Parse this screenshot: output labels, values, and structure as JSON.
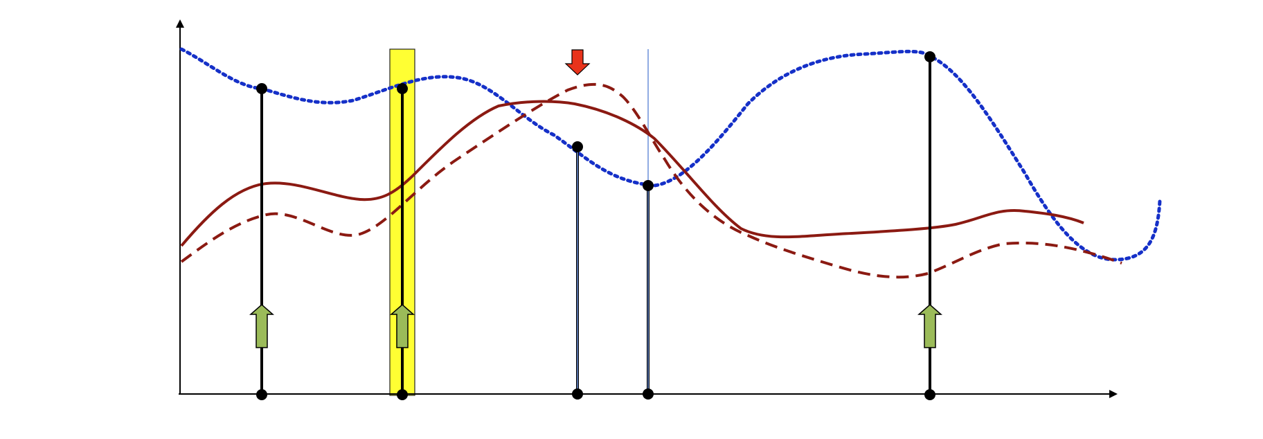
{
  "diagram": {
    "colors": {
      "dotted_curve": "#1530c8",
      "solid_curve": "#8b1a12",
      "dashed_curve": "#8b1a12",
      "stem": "#000000",
      "thin_line": "#6a8fd8",
      "highlight_fill": "#ffff33",
      "up_arrow": "#9bbb59",
      "down_arrow": "#e8331b"
    },
    "samples": [
      {
        "id": "s1",
        "style": "thick",
        "up_arrow": true,
        "highlight": false
      },
      {
        "id": "s2",
        "style": "thick",
        "up_arrow": true,
        "highlight": true
      },
      {
        "id": "s3",
        "style": "thin",
        "down_arrow": true,
        "highlight": false
      },
      {
        "id": "s4",
        "style": "thin",
        "highlight": false
      },
      {
        "id": "s5",
        "style": "thick",
        "up_arrow": true,
        "highlight": false
      }
    ]
  }
}
